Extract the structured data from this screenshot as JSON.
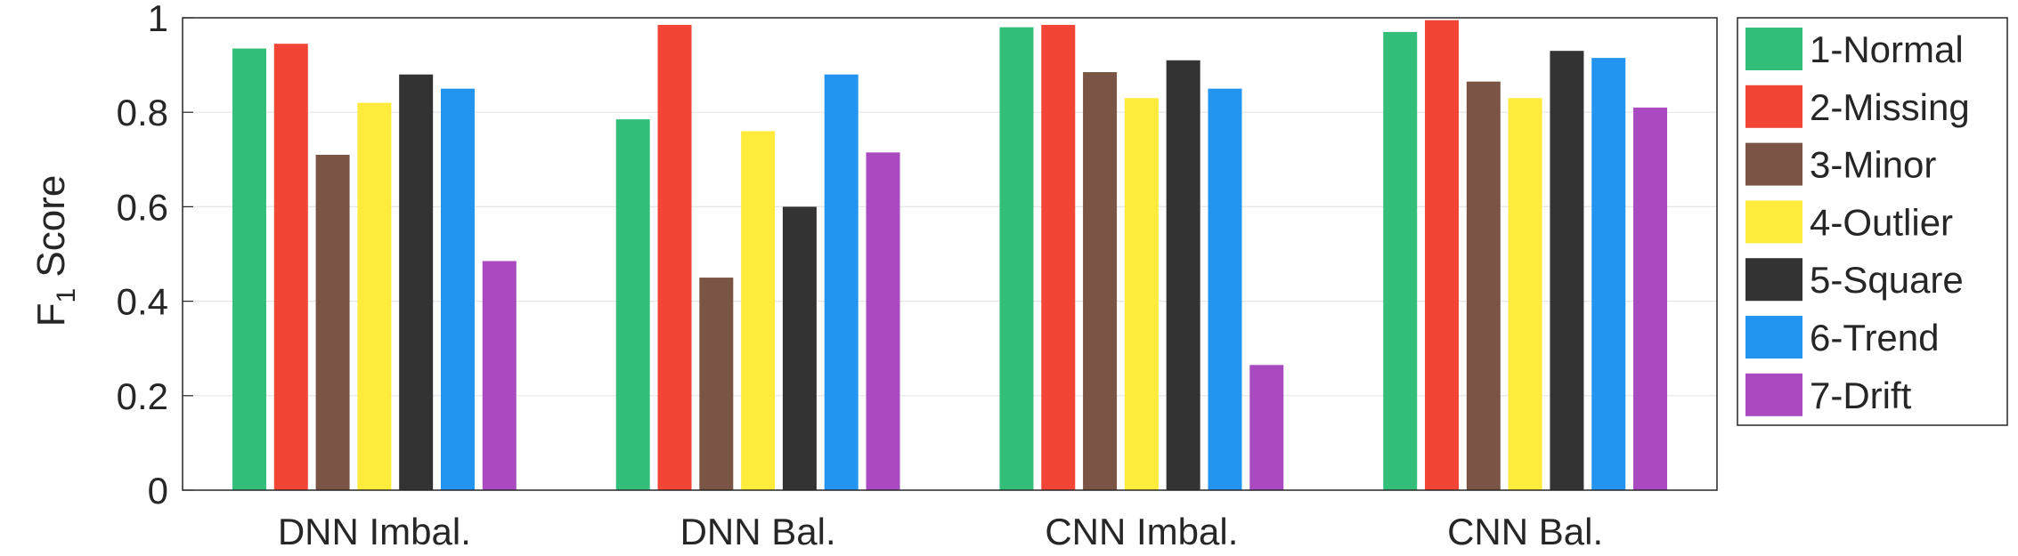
{
  "chart_data": {
    "type": "bar",
    "ylabel": {
      "main": "F",
      "subscript": "1",
      "rest": " Score"
    },
    "ylim": [
      0,
      1
    ],
    "yticks": [
      0,
      0.2,
      0.4,
      0.6,
      0.8,
      1
    ],
    "ytick_labels": [
      "0",
      "0.2",
      "0.4",
      "0.6",
      "0.8",
      "1"
    ],
    "grid": "horizontal",
    "legend_position": "right",
    "categories": [
      "DNN Imbal.",
      "DNN Bal.",
      "CNN Imbal.",
      "CNN Bal."
    ],
    "series": [
      {
        "name": "1-Normal",
        "color": "#33bf7a",
        "values": [
          0.935,
          0.785,
          0.98,
          0.97
        ]
      },
      {
        "name": "2-Missing",
        "color": "#f24535",
        "values": [
          0.945,
          0.985,
          0.985,
          0.995
        ]
      },
      {
        "name": "3-Minor",
        "color": "#7a5546",
        "values": [
          0.71,
          0.45,
          0.885,
          0.865
        ]
      },
      {
        "name": "4-Outlier",
        "color": "#ffeb3b",
        "values": [
          0.82,
          0.76,
          0.83,
          0.83
        ]
      },
      {
        "name": "5-Square",
        "color": "#333333",
        "values": [
          0.88,
          0.6,
          0.91,
          0.93
        ]
      },
      {
        "name": "6-Trend",
        "color": "#2395f0",
        "values": [
          0.85,
          0.88,
          0.85,
          0.915
        ]
      },
      {
        "name": "7-Drift",
        "color": "#a94ac1",
        "values": [
          0.485,
          0.715,
          0.265,
          0.81
        ]
      }
    ]
  }
}
